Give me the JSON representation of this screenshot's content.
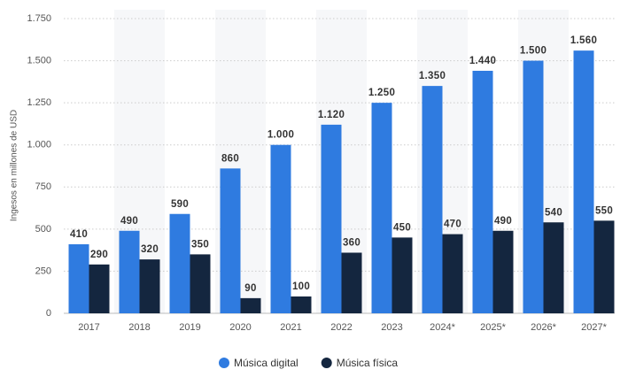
{
  "chart_data": {
    "type": "bar",
    "y_label": "Ingesos en millones de USD",
    "categories": [
      "2017",
      "2018",
      "2019",
      "2020",
      "2021",
      "2022",
      "2023",
      "2024*",
      "2025*",
      "2026*",
      "2027*"
    ],
    "series": [
      {
        "name": "Música digital",
        "color": "#2f7be0",
        "values": [
          410,
          490,
          590,
          860,
          1000,
          1120,
          1250,
          1350,
          1440,
          1500,
          1560
        ],
        "value_labels": [
          "410",
          "490",
          "590",
          "860",
          "1.000",
          "1.120",
          "1.250",
          "1.350",
          "1.440",
          "1.500",
          "1.560"
        ]
      },
      {
        "name": "Música física",
        "color": "#14263f",
        "values": [
          290,
          320,
          350,
          90,
          100,
          360,
          450,
          470,
          490,
          540,
          550
        ]
      }
    ],
    "ylim": [
      0,
      1750
    ],
    "yticks": [
      0,
      250,
      500,
      750,
      {
        "value": 1000,
        "label": "1.000"
      },
      {
        "value": 1250,
        "label": "1.250"
      },
      {
        "value": 1500,
        "label": "1.500"
      },
      {
        "value": 1750,
        "label": "1.750"
      }
    ],
    "grid": true
  }
}
